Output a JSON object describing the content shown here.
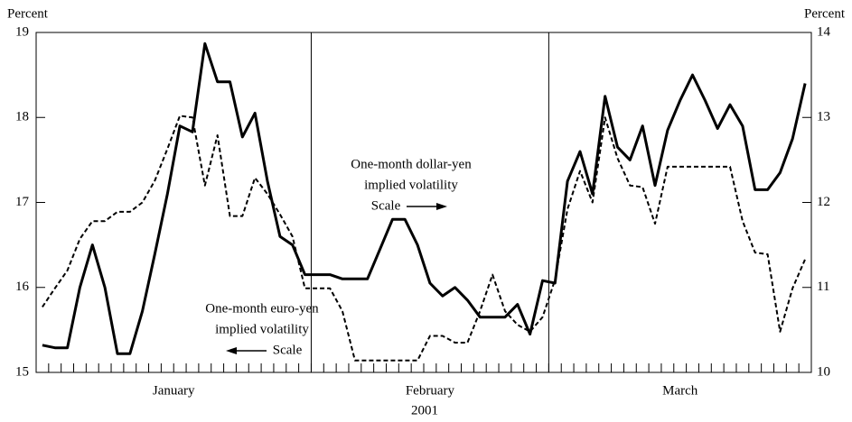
{
  "chart_data": {
    "type": "line",
    "ylabel": "Percent",
    "y2label": "Percent",
    "xlabel": "2001",
    "categories": [
      null,
      null,
      null,
      null,
      null,
      null,
      null,
      null,
      null,
      null,
      null,
      null,
      null,
      null,
      null,
      null,
      null,
      null,
      null,
      null,
      null,
      null,
      null,
      null,
      null,
      null,
      null,
      null,
      null,
      null,
      null,
      null,
      null,
      null,
      null,
      null,
      null,
      null,
      null,
      null,
      null,
      null,
      null,
      null,
      null,
      null,
      null,
      null,
      null,
      null,
      null,
      null,
      null,
      null,
      null,
      null,
      null,
      null,
      null,
      null,
      null,
      null
    ],
    "x_groups": [
      {
        "label": "January",
        "count": 22
      },
      {
        "label": "February",
        "count": 19
      },
      {
        "label": "March",
        "count": 21
      }
    ],
    "ylim": [
      15,
      19
    ],
    "yticks": [
      15,
      16,
      17,
      18,
      19
    ],
    "y2lim": [
      10,
      14
    ],
    "y2ticks": [
      10,
      11,
      12,
      13,
      14
    ],
    "series": [
      {
        "name": "One-month euro-yen implied volatility",
        "color": "#000000",
        "dash": true,
        "values": [
          15.77,
          15.99,
          16.2,
          16.57,
          16.78,
          16.78,
          16.89,
          16.89,
          17.0,
          17.26,
          17.63,
          18.02,
          18.0,
          17.2,
          17.79,
          16.84,
          16.84,
          17.29,
          17.1,
          16.86,
          16.6,
          15.99,
          15.99,
          15.99,
          15.72,
          15.14,
          15.14,
          15.14,
          15.14,
          15.14,
          15.14,
          15.43,
          15.43,
          15.35,
          15.35,
          15.72,
          16.15,
          15.72,
          15.56,
          15.48,
          15.65,
          16.09,
          16.92,
          17.37,
          17.0,
          18.0,
          17.52,
          17.2,
          17.18,
          16.75,
          17.42,
          17.42,
          17.42,
          17.42,
          17.42,
          17.42,
          16.78,
          16.41,
          16.39,
          15.48,
          15.99,
          16.33
        ]
      },
      {
        "name": "One-month dollar-yen implied volatility",
        "color": "#000000",
        "dash": false,
        "axis": "y2",
        "values": [
          10.32,
          10.29,
          10.29,
          11.0,
          11.5,
          11.0,
          10.22,
          10.22,
          10.72,
          11.4,
          12.1,
          12.9,
          12.83,
          13.87,
          13.42,
          13.42,
          12.77,
          13.05,
          12.25,
          11.6,
          11.5,
          11.15,
          11.15,
          11.15,
          11.1,
          11.1,
          11.1,
          11.45,
          11.8,
          11.8,
          11.5,
          11.05,
          10.9,
          11.0,
          10.85,
          10.65,
          10.65,
          10.65,
          10.8,
          10.45,
          11.08,
          11.05,
          12.25,
          12.6,
          12.1,
          13.25,
          12.65,
          12.5,
          12.9,
          12.2,
          12.85,
          13.2,
          13.5,
          13.2,
          12.87,
          13.15,
          12.9,
          12.15,
          12.15,
          12.35,
          12.75,
          13.4
        ]
      }
    ],
    "annotations": [
      {
        "lines": [
          "One-month dollar-yen",
          "implied volatility",
          "Scale"
        ],
        "arrow": "right"
      },
      {
        "lines": [
          "One-month euro-yen",
          "implied volatility",
          "Scale"
        ],
        "arrow": "left"
      }
    ]
  }
}
